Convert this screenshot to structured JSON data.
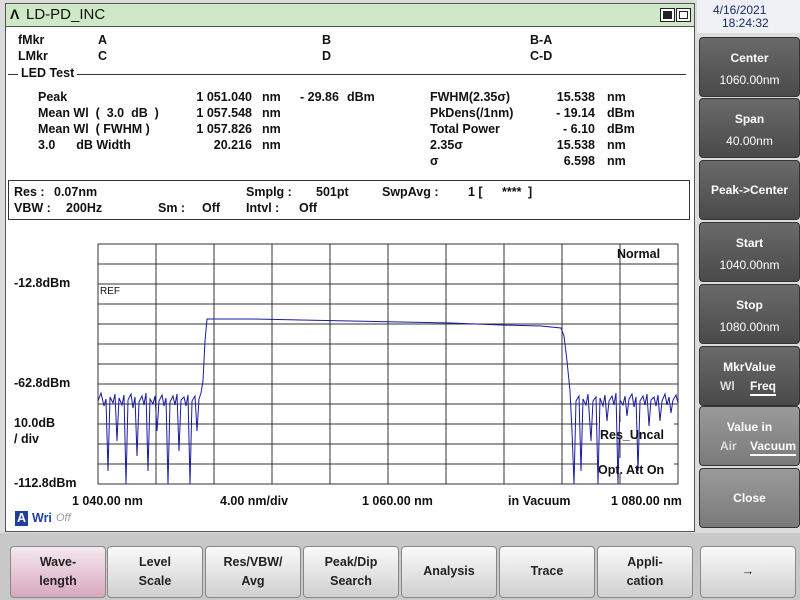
{
  "title_bar": {
    "title": "LD-PD_INC"
  },
  "datetime": {
    "date": "4/16/2021",
    "time": "18:24:32"
  },
  "markers": {
    "rows": [
      [
        "fMkr",
        "A",
        "B",
        "B-A"
      ],
      [
        "LMkr",
        "C",
        "D",
        "C-D"
      ]
    ]
  },
  "section": "LED Test",
  "results": {
    "left": [
      [
        "Peak",
        "1 051.040",
        "nm"
      ],
      [
        "Mean Wl  (  3.0  dB  )",
        "1 057.548",
        "nm"
      ],
      [
        "Mean Wl  ( FWHM )",
        "1 057.826",
        "nm"
      ],
      [
        "3.0      dB Width",
        "20.216",
        "nm"
      ]
    ],
    "peak_level": [
      "- 29.86",
      "dBm"
    ],
    "right": [
      [
        "FWHM(2.35σ)",
        "15.538",
        "nm"
      ],
      [
        "PkDens(/1nm)",
        "- 19.14",
        "dBm"
      ],
      [
        "Total Power",
        "- 6.10",
        "dBm"
      ],
      [
        "2.35σ",
        "15.538",
        "nm"
      ],
      [
        "σ",
        "6.598",
        "nm"
      ]
    ]
  },
  "settings": {
    "row1": [
      [
        "Res :",
        "0.07nm"
      ],
      [
        "Smplg :",
        "501pt"
      ],
      [
        "SwpAvg :",
        "1 [",
        "****",
        "]"
      ]
    ],
    "row2": [
      [
        "VBW :",
        "200Hz"
      ],
      [
        "Sm :",
        "Off"
      ],
      [
        "Intvl :",
        "Off"
      ]
    ]
  },
  "plot": {
    "mode": "Normal",
    "ref": "REF",
    "y_labels": [
      "-12.8dBm",
      "-62.8dBm",
      "-112.8dBm"
    ],
    "scale": [
      "10.0dB",
      "/ div"
    ],
    "x_labels": [
      "1 040.00 nm",
      "4.00 nm/div",
      "1 060.00 nm",
      "in Vacuum",
      "1 080.00 nm"
    ],
    "status": [
      "Res_Uncal",
      "Opt. Att On"
    ],
    "trace": [
      "A",
      "Wri",
      "Off"
    ]
  },
  "softkeys": [
    {
      "label": "Center",
      "value": "1060.00nm"
    },
    {
      "label": "Span",
      "value": "40.00nm"
    },
    {
      "label": "Peak->Center"
    },
    {
      "label": "Start",
      "value": "1040.00nm"
    },
    {
      "label": "Stop",
      "value": "1080.00nm"
    },
    {
      "label": "MkrValue",
      "options": [
        "Wl",
        "Freq"
      ]
    },
    {
      "label": "Value in",
      "options": [
        "Air",
        "Vacuum"
      ]
    },
    {
      "label": "Close"
    }
  ],
  "bottom_keys": [
    [
      "Wave-",
      "length"
    ],
    [
      "Level",
      "Scale"
    ],
    [
      "Res/VBW/",
      "Avg"
    ],
    [
      "Peak/Dip",
      "Search"
    ],
    [
      "Analysis"
    ],
    [
      "Trace"
    ],
    [
      "Appli-",
      "cation"
    ],
    [
      "→"
    ]
  ]
}
